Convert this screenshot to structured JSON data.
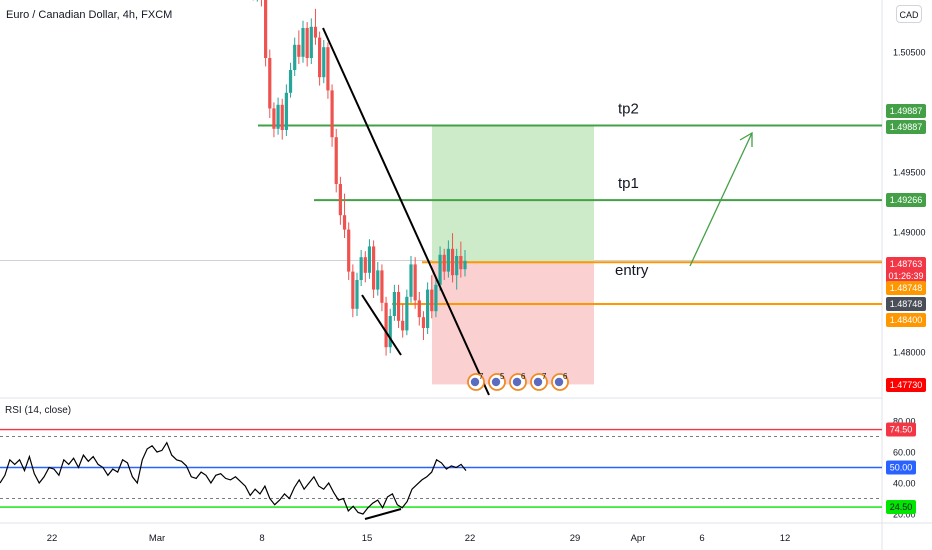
{
  "header": {
    "title": "Euro / Canadian Dollar, 4h, FXCM",
    "currency": "CAD"
  },
  "rsi": {
    "title": "RSI (14, close)",
    "axis_ticks": [
      {
        "label": "80.00",
        "value": 80
      },
      {
        "label": "60.00",
        "value": 60
      },
      {
        "label": "40.00",
        "value": 40
      },
      {
        "label": "20.00",
        "value": 20
      }
    ],
    "levels": [
      {
        "label": "74.50",
        "value": 74.5,
        "color": "#f23645"
      },
      {
        "label": "50.00",
        "value": 50,
        "color": "#2962ff"
      },
      {
        "label": "24.50",
        "value": 24.5,
        "color": "#00e600"
      }
    ],
    "series": [
      40,
      45,
      55,
      52,
      55,
      48,
      57,
      46,
      40,
      44,
      50,
      49,
      45,
      55,
      52,
      56,
      50,
      58,
      54,
      57,
      52,
      50,
      45,
      49,
      47,
      55,
      53,
      44,
      40,
      55,
      62,
      64,
      60,
      61,
      66,
      58,
      55,
      54,
      51,
      44,
      43,
      47,
      45,
      40,
      45,
      46,
      43,
      42,
      44,
      41,
      38,
      32,
      36,
      33,
      38,
      30,
      26,
      29,
      33,
      30,
      37,
      42,
      36,
      40,
      44,
      38,
      36,
      40,
      34,
      29,
      30,
      22,
      25,
      21,
      20,
      24,
      27,
      29,
      24,
      31,
      33,
      26,
      24,
      28,
      36,
      39,
      42,
      44,
      47,
      55,
      53,
      49,
      51,
      50,
      52,
      48
    ]
  },
  "chart_data": {
    "type": "candlestick",
    "title": "Euro / Canadian Dollar, 4h, FXCM",
    "y_ticks": [
      {
        "label": "1.50500",
        "value": 1.505
      },
      {
        "label": "1.49500",
        "value": 1.495
      },
      {
        "label": "1.49000",
        "value": 1.49
      },
      {
        "label": "1.48000",
        "value": 1.48
      }
    ],
    "x_ticks": [
      "22",
      "Mar",
      "8",
      "15",
      "22",
      "29",
      "Apr",
      "6",
      "12"
    ],
    "price_labels": [
      {
        "label": "1.49887",
        "value": 1.49887,
        "color": "#43a047"
      },
      {
        "label": "1.49887",
        "value": 1.49887,
        "color": "#43a047"
      },
      {
        "label": "1.49266",
        "value": 1.49266,
        "color": "#43a047"
      },
      {
        "label": "1.48763",
        "value": 1.48763,
        "color": "#f23645",
        "countdown": "01:26:39"
      },
      {
        "label": "1.48748",
        "value": 1.48748,
        "color": "#ff9800"
      },
      {
        "label": "1.48748",
        "value": 1.48748,
        "color": "#4a4e59"
      },
      {
        "label": "1.48400",
        "value": 1.484,
        "color": "#ff9800"
      },
      {
        "label": "1.47730",
        "value": 1.4773,
        "color": "#ff0000"
      }
    ],
    "levels": [
      {
        "name": "tp2",
        "value": 1.49887,
        "color": "#43a047"
      },
      {
        "name": "tp1",
        "value": 1.49266,
        "color": "#43a047"
      },
      {
        "name": "entry",
        "value": 1.48748,
        "color": "#ff9800"
      },
      {
        "name": "",
        "value": 1.484,
        "color": "#ff9800"
      }
    ],
    "position": {
      "entry": 1.48748,
      "target": 1.49887,
      "stop": 1.4773
    },
    "event_counts": [
      "7",
      "5",
      "6",
      "7",
      "6"
    ],
    "ohlc": [
      [
        1.5148,
        1.5152,
        1.5117,
        1.5121
      ],
      [
        1.5121,
        1.5127,
        1.5093,
        1.5097
      ],
      [
        1.5097,
        1.5132,
        1.5092,
        1.5126
      ],
      [
        1.5126,
        1.5135,
        1.5088,
        1.5094
      ],
      [
        1.5094,
        1.5099,
        1.5038,
        1.5045
      ],
      [
        1.5045,
        1.5052,
        1.4995,
        1.5003
      ],
      [
        1.5003,
        1.5008,
        1.4979,
        1.4986
      ],
      [
        1.4986,
        1.5012,
        1.4981,
        1.5006
      ],
      [
        1.5006,
        1.5011,
        1.4977,
        1.4985
      ],
      [
        1.4985,
        1.5023,
        1.498,
        1.5016
      ],
      [
        1.5016,
        1.5041,
        1.5012,
        1.5035
      ],
      [
        1.5035,
        1.5062,
        1.503,
        1.5056
      ],
      [
        1.5056,
        1.5068,
        1.504,
        1.5046
      ],
      [
        1.5046,
        1.5076,
        1.5041,
        1.507
      ],
      [
        1.507,
        1.5075,
        1.5038,
        1.5045
      ],
      [
        1.5045,
        1.5078,
        1.504,
        1.5071
      ],
      [
        1.5071,
        1.5086,
        1.5056,
        1.5062
      ],
      [
        1.5062,
        1.5067,
        1.5022,
        1.5029
      ],
      [
        1.5029,
        1.506,
        1.5024,
        1.5054
      ],
      [
        1.5054,
        1.5058,
        1.5011,
        1.5018
      ],
      [
        1.5018,
        1.5023,
        1.4971,
        1.4979
      ],
      [
        1.4979,
        1.4986,
        1.4933,
        1.494
      ],
      [
        1.494,
        1.4946,
        1.4906,
        1.4914
      ],
      [
        1.4914,
        1.4932,
        1.4895,
        1.4902
      ],
      [
        1.4902,
        1.4908,
        1.486,
        1.4867
      ],
      [
        1.4867,
        1.4873,
        1.4829,
        1.4836
      ],
      [
        1.4836,
        1.4866,
        1.483,
        1.486
      ],
      [
        1.486,
        1.4885,
        1.4855,
        1.4879
      ],
      [
        1.4879,
        1.4884,
        1.4858,
        1.4866
      ],
      [
        1.4866,
        1.4894,
        1.4861,
        1.4888
      ],
      [
        1.4888,
        1.4893,
        1.4845,
        1.4852
      ],
      [
        1.4852,
        1.4875,
        1.4847,
        1.4868
      ],
      [
        1.4868,
        1.4873,
        1.4834,
        1.4841
      ],
      [
        1.4841,
        1.4846,
        1.4797,
        1.4804
      ],
      [
        1.4804,
        1.4836,
        1.4799,
        1.483
      ],
      [
        1.483,
        1.4856,
        1.4826,
        1.485
      ],
      [
        1.485,
        1.4856,
        1.482,
        1.4826
      ],
      [
        1.4826,
        1.484,
        1.4812,
        1.4818
      ],
      [
        1.4818,
        1.4852,
        1.4814,
        1.4846
      ],
      [
        1.4846,
        1.488,
        1.4841,
        1.4873
      ],
      [
        1.4873,
        1.4879,
        1.4836,
        1.4843
      ],
      [
        1.4843,
        1.485,
        1.4822,
        1.4829
      ],
      [
        1.4829,
        1.4834,
        1.481,
        1.482
      ],
      [
        1.482,
        1.4858,
        1.4815,
        1.4852
      ],
      [
        1.4852,
        1.4864,
        1.4828,
        1.4834
      ],
      [
        1.4834,
        1.4862,
        1.4829,
        1.4856
      ],
      [
        1.4856,
        1.4888,
        1.4851,
        1.4881
      ],
      [
        1.4881,
        1.4886,
        1.486,
        1.4867
      ],
      [
        1.4867,
        1.4893,
        1.4862,
        1.4886
      ],
      [
        1.4886,
        1.4899,
        1.4858,
        1.4864
      ],
      [
        1.4864,
        1.4886,
        1.4852,
        1.488
      ],
      [
        1.488,
        1.4892,
        1.4862,
        1.4869
      ],
      [
        1.4869,
        1.4885,
        1.4863,
        1.4876
      ]
    ]
  }
}
